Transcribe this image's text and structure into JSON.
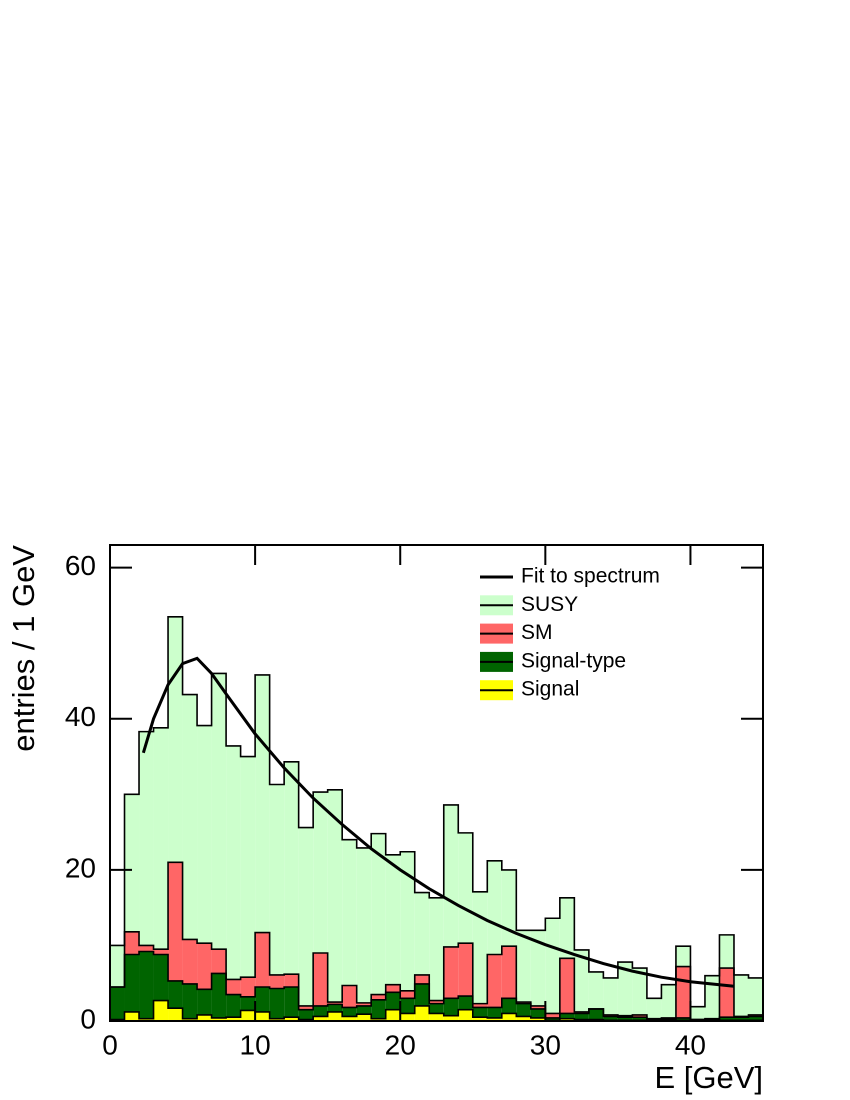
{
  "chart_data": {
    "type": "histogram",
    "xlabel": "E [GeV]",
    "ylabel": "entries / 1 GeV",
    "xlim": [
      0,
      45
    ],
    "ylim": [
      0,
      63
    ],
    "xticks": [
      0,
      10,
      20,
      30,
      40
    ],
    "yticks": [
      0,
      20,
      40,
      60
    ],
    "legend": "upper right",
    "stacked": true,
    "bins": [
      0,
      1,
      2,
      3,
      4,
      5,
      6,
      7,
      8,
      9,
      10,
      11,
      12,
      13,
      14,
      15,
      16,
      17,
      18,
      19,
      20,
      21,
      22,
      23,
      24,
      25,
      26,
      27,
      28,
      29,
      30,
      31,
      32,
      33,
      34,
      35,
      36,
      37,
      38,
      39,
      40,
      41,
      42,
      43,
      44,
      45
    ],
    "series": [
      {
        "name": "Signal",
        "color": "#ffff00",
        "values": [
          0.2,
          1.2,
          0.3,
          2.7,
          1.7,
          0.3,
          0.8,
          0.4,
          0.5,
          1.4,
          1.2,
          0.3,
          0.5,
          0.2,
          0.6,
          1.2,
          0.6,
          0.9,
          0.3,
          1.5,
          1.0,
          2.0,
          1.0,
          0.7,
          1.5,
          0.5,
          0.4,
          1.0,
          0.6,
          0.4,
          0.1,
          0.3,
          0.2,
          0.2,
          0.1,
          0.1,
          0.1,
          0,
          0.1,
          0.1,
          0,
          0,
          0.1,
          0.1,
          0.1
        ]
      },
      {
        "name": "Signal-type",
        "color": "#006400",
        "values": [
          4.3,
          7.6,
          8.9,
          6.1,
          3.6,
          4.6,
          3.4,
          5.9,
          3.0,
          1.8,
          3.3,
          4.0,
          4.0,
          1.3,
          1.4,
          1.0,
          1.2,
          1.1,
          2.5,
          2.3,
          2.0,
          2.9,
          1.3,
          2.3,
          1.8,
          1.3,
          1.4,
          2.0,
          1.7,
          1.2,
          0.3,
          0.7,
          0.8,
          1.4,
          0.5,
          0.4,
          0.4,
          0.2,
          0.2,
          0.3,
          0.2,
          0.2,
          0.4,
          0.4,
          0.5
        ]
      },
      {
        "name": "SM",
        "color": "#ff6666",
        "values": [
          0,
          3.0,
          0.8,
          0.7,
          15.7,
          5.9,
          6.1,
          3.2,
          2.0,
          2.6,
          7.2,
          1.8,
          1.7,
          0.5,
          7.0,
          0.3,
          2.9,
          0.4,
          0.7,
          1.0,
          1.0,
          1.2,
          0.4,
          6.8,
          7.0,
          0.5,
          7.0,
          6.9,
          0.2,
          0.4,
          0.6,
          7.3,
          0.2,
          0,
          0.2,
          0.2,
          0.3,
          0.1,
          0.1,
          6.8,
          0,
          0.1,
          6.5,
          0.1,
          0.2
        ]
      },
      {
        "name": "SUSY",
        "color": "#ccffcc",
        "values": [
          5.5,
          18.2,
          28.3,
          29.3,
          32.5,
          32.4,
          28.8,
          36.5,
          30.9,
          29.2,
          34.1,
          25.2,
          28.1,
          23.6,
          21.3,
          28.1,
          19.3,
          20.5,
          21.3,
          17.2,
          18.4,
          10.9,
          13.6,
          18.8,
          14.6,
          14.8,
          12.4,
          10.1,
          9.5,
          10.0,
          12.6,
          8.0,
          8.2,
          4.9,
          4.9,
          7.1,
          6.2,
          2.7,
          4.4,
          2.7,
          1.7,
          5.7,
          4.4,
          5.5,
          4.9
        ]
      }
    ],
    "lines": [
      {
        "name": "Fit to spectrum",
        "color": "#000000",
        "x": [
          2.3,
          3,
          4,
          5,
          6,
          7,
          8,
          10,
          12,
          14,
          16,
          18,
          20,
          22,
          24,
          26,
          28,
          30,
          32,
          34,
          36,
          38,
          40,
          43
        ],
        "values": [
          35.5,
          40,
          44.5,
          47.3,
          48,
          46,
          43.3,
          38,
          33.5,
          29.5,
          26,
          22.8,
          20,
          17.5,
          15.3,
          13.3,
          11.6,
          10.1,
          8.8,
          7.6,
          6.6,
          5.8,
          5.2,
          4.6
        ]
      }
    ]
  }
}
